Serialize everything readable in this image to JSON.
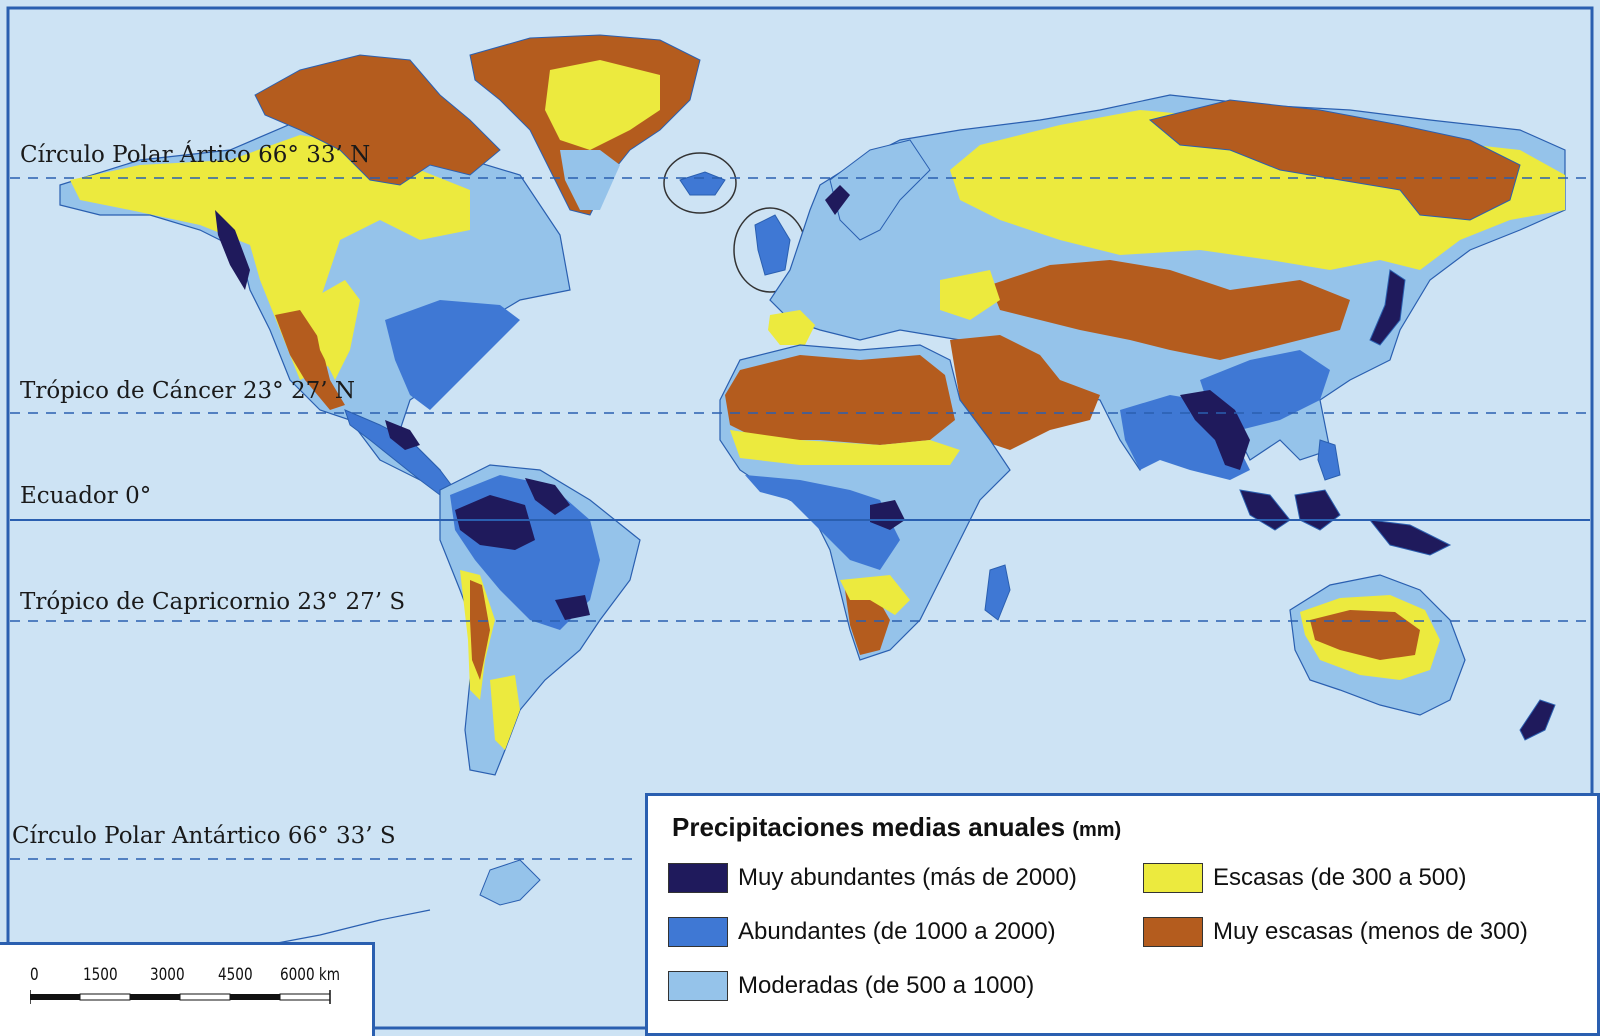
{
  "lines": {
    "arctic": "Círculo Polar Ártico 66° 33’ N",
    "cancer": "Trópico de Cáncer 23° 27’ N",
    "equator": "Ecuador 0°",
    "capricorn": "Trópico de Capricornio 23° 27’ S",
    "antarctic": "Círculo Polar Antártico 66° 33’ S"
  },
  "legend": {
    "title": "Precipitaciones medias anuales",
    "unit": "(mm)",
    "items": [
      {
        "label": "Muy abundantes (más de 2000)",
        "color": "#1f1a5c"
      },
      {
        "label": "Abundantes (de 1000 a 2000)",
        "color": "#3f78d4"
      },
      {
        "label": "Moderadas (de 500 a 1000)",
        "color": "#95c3ea"
      },
      {
        "label": "Escasas (de 300 a 500)",
        "color": "#ecea3e"
      },
      {
        "label": "Muy escasas (menos de 300)",
        "color": "#b45c1e"
      }
    ]
  },
  "scale": {
    "ticks": [
      "0",
      "1500",
      "3000",
      "4500",
      "6000 km"
    ]
  },
  "colors": {
    "ocean": "#cde3f4",
    "border": "#2a5fb0",
    "very_wet": "#1f1a5c",
    "wet": "#3f78d4",
    "moderate": "#95c3ea",
    "dry": "#ecea3e",
    "very_dry": "#b45c1e"
  }
}
